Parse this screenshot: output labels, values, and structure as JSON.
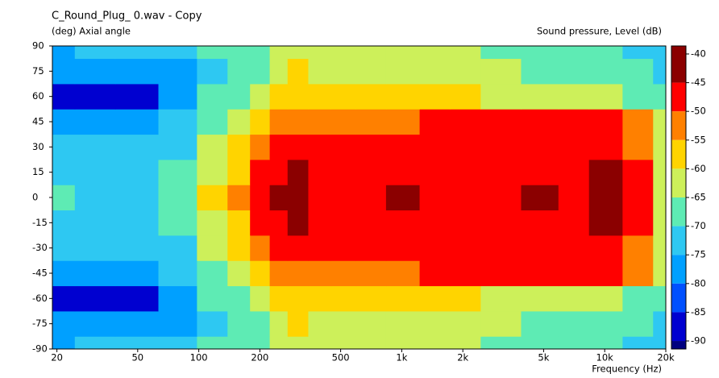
{
  "chart_data": {
    "type": "contour",
    "title": "C_Round_Plug_ 0.wav - Copy",
    "y_label": "(deg)  Axial angle",
    "x_label": "Frequency  (Hz)",
    "colorbar_label": "Sound pressure, Level  (dB)",
    "x_scale": "log",
    "xlim": [
      19,
      20000
    ],
    "xticks": [
      20,
      50,
      100,
      200,
      500,
      {
        "value": 1000,
        "label": "1k"
      },
      {
        "value": 2000,
        "label": "2k"
      },
      {
        "value": 5000,
        "label": "5k"
      },
      {
        "value": 10000,
        "label": "10k"
      },
      {
        "value": 20000,
        "label": "20k"
      }
    ],
    "ylim": [
      -90,
      90
    ],
    "yticks": [
      90,
      75,
      60,
      45,
      30,
      15,
      0,
      -15,
      -30,
      -45,
      -60,
      -75,
      -90
    ],
    "clim": [
      -91.4,
      -38.6
    ],
    "cticks": [
      -40,
      -45,
      -50,
      -55,
      -60,
      -65,
      -70,
      -75,
      -80,
      -85,
      -90
    ],
    "levels": [
      -45,
      -50,
      -55,
      -60,
      -65,
      -70,
      -75,
      -80,
      -85,
      -90
    ],
    "colors": [
      "#8b0000",
      "#ff0000",
      "#ff8000",
      "#ffd400",
      "#cdf05a",
      "#5eebb4",
      "#2ec8f2",
      "#00a0ff",
      "#0050ff",
      "#0000d0",
      "#000080"
    ],
    "x": [
      20,
      30,
      50,
      80,
      120,
      160,
      200,
      250,
      300,
      400,
      500,
      700,
      1000,
      1500,
      2000,
      3000,
      5000,
      7000,
      10000,
      15000,
      20000
    ],
    "y": [
      -90,
      -75,
      -60,
      -45,
      -30,
      -15,
      0,
      15,
      30,
      45,
      60,
      75,
      90
    ],
    "z": [
      [
        -76,
        -75,
        -75,
        -74,
        -70,
        -68,
        -66,
        -62,
        -61,
        -63,
        -64,
        -65,
        -64,
        -63,
        -65,
        -66,
        -67,
        -68,
        -70,
        -72,
        -74
      ],
      [
        -78,
        -80,
        -80,
        -78,
        -72,
        -68,
        -67,
        -62,
        -60,
        -61,
        -62,
        -63,
        -64,
        -63,
        -64,
        -65,
        -66,
        -67,
        -68,
        -70,
        -74
      ],
      [
        -86,
        -86,
        -88,
        -78,
        -70,
        -66,
        -62,
        -57,
        -56,
        -57,
        -58,
        -57,
        -58,
        -58,
        -60,
        -61,
        -62,
        -63,
        -64,
        -66,
        -68
      ],
      [
        -80,
        -78,
        -76,
        -72,
        -66,
        -62,
        -56,
        -52,
        -52,
        -55,
        -52,
        -52,
        -52,
        -50,
        -49,
        -49,
        -48,
        -49,
        -50,
        -55,
        -62
      ],
      [
        -73,
        -72,
        -73,
        -71,
        -63,
        -58,
        -52,
        -47,
        -47,
        -48,
        -48,
        -48,
        -47,
        -47,
        -47,
        -46,
        -46,
        -46,
        -46,
        -52,
        -62
      ],
      [
        -71,
        -72,
        -72,
        -70,
        -62,
        -56,
        -49,
        -46,
        -44,
        -47,
        -47,
        -47,
        -46,
        -47,
        -47,
        -47,
        -46,
        -46,
        -45,
        -49,
        -62
      ],
      [
        -70,
        -72,
        -73,
        -70,
        -60,
        -55,
        -48,
        -45,
        -42,
        -47,
        -47,
        -46,
        -44,
        -46,
        -46,
        -46,
        -45,
        -46,
        -45,
        -48,
        -62
      ],
      [
        -71,
        -72,
        -72,
        -70,
        -62,
        -56,
        -49,
        -46,
        -44,
        -47,
        -47,
        -47,
        -46,
        -47,
        -47,
        -47,
        -46,
        -46,
        -45,
        -49,
        -62
      ],
      [
        -73,
        -72,
        -73,
        -71,
        -63,
        -58,
        -52,
        -47,
        -47,
        -48,
        -48,
        -48,
        -47,
        -47,
        -47,
        -46,
        -46,
        -46,
        -46,
        -52,
        -62
      ],
      [
        -80,
        -78,
        -76,
        -72,
        -66,
        -62,
        -56,
        -52,
        -52,
        -55,
        -52,
        -52,
        -52,
        -50,
        -49,
        -49,
        -48,
        -49,
        -50,
        -55,
        -62
      ],
      [
        -86,
        -86,
        -88,
        -78,
        -70,
        -66,
        -62,
        -57,
        -56,
        -57,
        -58,
        -57,
        -58,
        -58,
        -60,
        -61,
        -62,
        -63,
        -64,
        -66,
        -68
      ],
      [
        -78,
        -80,
        -80,
        -78,
        -72,
        -68,
        -67,
        -62,
        -60,
        -61,
        -62,
        -63,
        -64,
        -63,
        -64,
        -65,
        -66,
        -67,
        -68,
        -70,
        -74
      ],
      [
        -76,
        -75,
        -75,
        -74,
        -70,
        -68,
        -66,
        -62,
        -61,
        -63,
        -64,
        -65,
        -64,
        -63,
        -65,
        -66,
        -67,
        -68,
        -70,
        -72,
        -74
      ]
    ]
  }
}
